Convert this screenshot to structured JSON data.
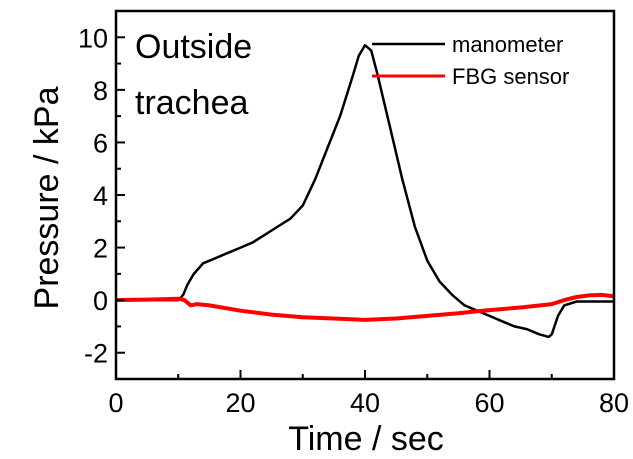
{
  "chart_data": {
    "type": "line",
    "annotation": [
      "Outside",
      "trachea"
    ],
    "xlabel": "Time / sec",
    "ylabel": "Pressure / kPa",
    "xlim": [
      0,
      80
    ],
    "ylim": [
      -3,
      11
    ],
    "x_ticks": [
      "0",
      "20",
      "40",
      "60",
      "80"
    ],
    "y_ticks": [
      "-2",
      "0",
      "2",
      "4",
      "6",
      "8",
      "10"
    ],
    "grid": false,
    "legend_position": "top-right",
    "series": [
      {
        "name": "manometer",
        "color": "#000000",
        "x": [
          0,
          5,
          10,
          10.8,
          11.5,
          12.5,
          14,
          16,
          18,
          20,
          22,
          24,
          26,
          28,
          30,
          32,
          34,
          36,
          38,
          39,
          40,
          40.5,
          41,
          42,
          44,
          46,
          48,
          50,
          52,
          54,
          56,
          58,
          60,
          62,
          64,
          66,
          68,
          69.5,
          70,
          71,
          72,
          74,
          76,
          78,
          80
        ],
        "y": [
          0,
          0,
          0,
          0.2,
          0.6,
          1.0,
          1.4,
          1.6,
          1.8,
          2.0,
          2.2,
          2.5,
          2.8,
          3.1,
          3.6,
          4.6,
          5.8,
          7.0,
          8.5,
          9.3,
          9.7,
          9.6,
          9.5,
          8.6,
          6.6,
          4.6,
          2.8,
          1.5,
          0.7,
          0.2,
          -0.2,
          -0.4,
          -0.6,
          -0.8,
          -1.0,
          -1.1,
          -1.3,
          -1.4,
          -1.3,
          -0.6,
          -0.2,
          -0.05,
          -0.05,
          -0.05,
          -0.05
        ]
      },
      {
        "name": "FBG sensor",
        "color": "#ff0000",
        "x": [
          0,
          5,
          10,
          11,
          12,
          13,
          15,
          20,
          25,
          30,
          35,
          40,
          45,
          50,
          55,
          58,
          60,
          65,
          70,
          72,
          74,
          76,
          78,
          80
        ],
        "y": [
          0,
          0.02,
          0.05,
          0,
          -0.2,
          -0.15,
          -0.2,
          -0.4,
          -0.55,
          -0.65,
          -0.7,
          -0.75,
          -0.7,
          -0.6,
          -0.5,
          -0.42,
          -0.38,
          -0.28,
          -0.15,
          0,
          0.12,
          0.18,
          0.2,
          0.15
        ]
      }
    ]
  }
}
